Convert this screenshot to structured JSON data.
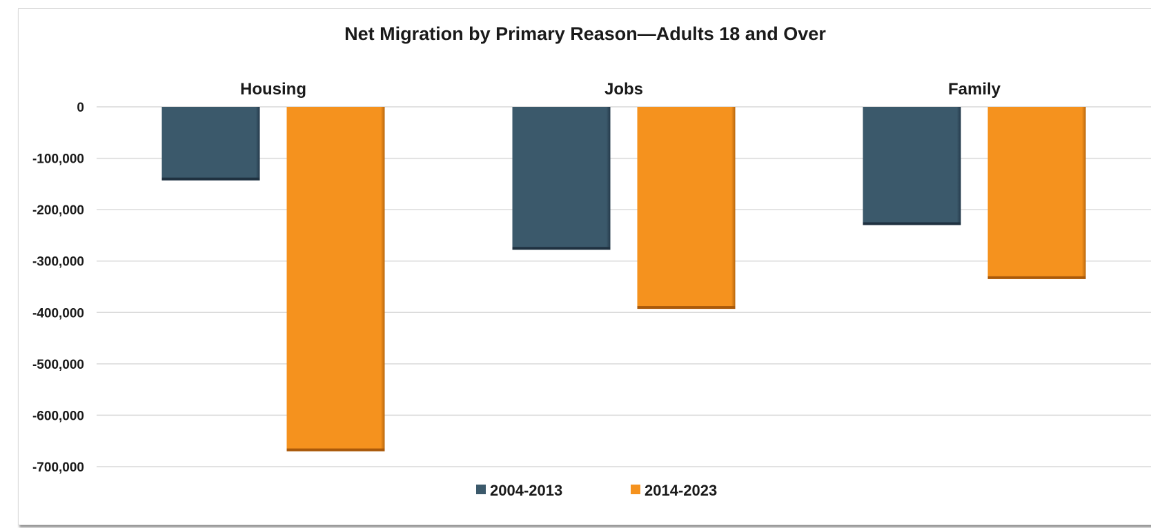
{
  "chart_data": {
    "type": "bar",
    "title": "Net Migration by Primary Reason—Adults 18 and Over",
    "categories": [
      "Housing",
      "Jobs",
      "Family"
    ],
    "series": [
      {
        "name": "2004-2013",
        "color": "#3b596b",
        "values": [
          -143000,
          -278000,
          -230000
        ]
      },
      {
        "name": "2014-2023",
        "color": "#f5921e",
        "values": [
          -670000,
          -393000,
          -335000
        ]
      }
    ],
    "ylim": [
      -700000,
      0
    ],
    "yticks": [
      0,
      -100000,
      -200000,
      -300000,
      -400000,
      -500000,
      -600000,
      -700000
    ],
    "ytick_labels": [
      "0",
      "-100,000",
      "-200,000",
      "-300,000",
      "-400,000",
      "-500,000",
      "-600,000",
      "-700,000"
    ],
    "grid": true,
    "legend_position": "bottom"
  }
}
